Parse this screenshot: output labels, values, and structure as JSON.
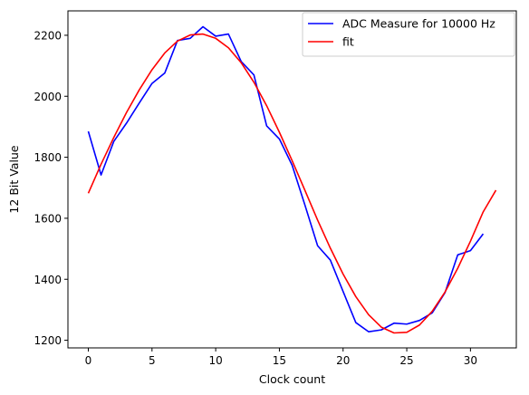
{
  "chart_data": {
    "type": "line",
    "xlabel": "Clock count",
    "ylabel": "12 Bit Value",
    "xlim": [
      -1.6,
      33.6
    ],
    "ylim": [
      1175,
      2280
    ],
    "xticks": [
      0,
      5,
      10,
      15,
      20,
      25,
      30
    ],
    "yticks": [
      1200,
      1400,
      1600,
      1800,
      2000,
      2200
    ],
    "grid": false,
    "legend_position": "top-right",
    "series": [
      {
        "name": "ADC Measure for 10000 Hz",
        "color": "#0000ff",
        "x": [
          0,
          1,
          2,
          3,
          4,
          5,
          6,
          7,
          8,
          9,
          10,
          11,
          12,
          13,
          14,
          15,
          16,
          17,
          18,
          19,
          20,
          21,
          22,
          23,
          24,
          25,
          26,
          27,
          28,
          29,
          30,
          31
        ],
        "y": [
          1885,
          1742,
          1852,
          1912,
          1978,
          2042,
          2076,
          2183,
          2190,
          2228,
          2197,
          2204,
          2114,
          2070,
          1903,
          1860,
          1774,
          1644,
          1510,
          1463,
          1360,
          1258,
          1228,
          1234,
          1256,
          1253,
          1265,
          1290,
          1356,
          1480,
          1494,
          1549
        ]
      },
      {
        "name": "fit",
        "color": "#ff0000",
        "x": [
          0,
          1,
          2,
          3,
          4,
          5,
          6,
          7,
          8,
          9,
          10,
          11,
          12,
          13,
          14,
          15,
          16,
          17,
          18,
          19,
          20,
          21,
          22,
          23,
          24,
          25,
          26,
          27,
          28,
          29,
          30,
          31,
          32
        ],
        "y": [
          1682,
          1777,
          1865,
          1947,
          2021,
          2087,
          2142,
          2181,
          2201,
          2204,
          2190,
          2159,
          2110,
          2046,
          1969,
          1882,
          1789,
          1692,
          1594,
          1502,
          1417,
          1343,
          1284,
          1243,
          1224,
          1226,
          1250,
          1295,
          1358,
          1436,
          1525,
          1621,
          1692
        ]
      }
    ]
  }
}
